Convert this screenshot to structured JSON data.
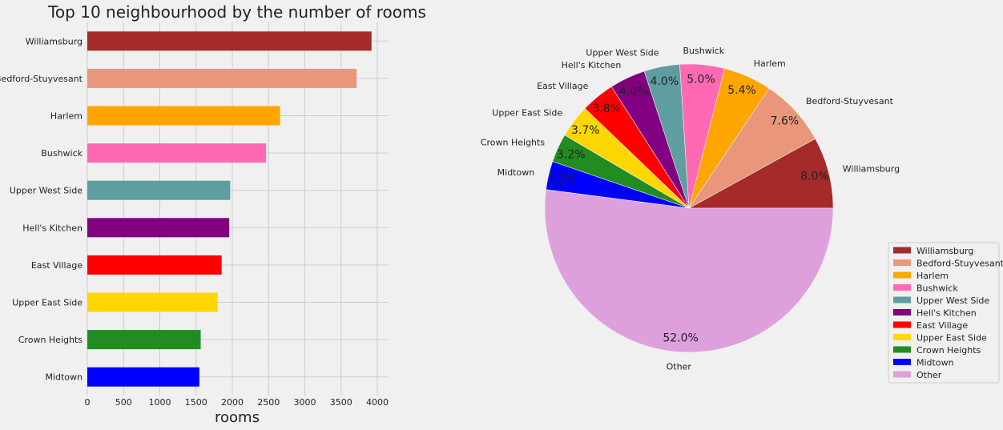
{
  "chart_data": [
    {
      "type": "bar",
      "orientation": "horizontal",
      "title": "Top 10 neighbourhood by the number of rooms",
      "xlabel": "rooms",
      "ylabel": "",
      "xlim": [
        0,
        4150
      ],
      "xticks": [
        0,
        500,
        1000,
        1500,
        2000,
        2500,
        3000,
        3500,
        4000
      ],
      "grid": true,
      "categories": [
        "Williamsburg",
        "Bedford-Stuyvesant",
        "Harlem",
        "Bushwick",
        "Upper West Side",
        "Hell's Kitchen",
        "East Village",
        "Upper East Side",
        "Crown Heights",
        "Midtown"
      ],
      "values": [
        3920,
        3714,
        2658,
        2465,
        1971,
        1958,
        1853,
        1798,
        1564,
        1545
      ],
      "colors": [
        "#a52a2a",
        "#e9967a",
        "#ffa500",
        "#ff69b4",
        "#5f9ea0",
        "#800080",
        "#ff0000",
        "#ffd700",
        "#228b22",
        "#0000ff"
      ]
    },
    {
      "type": "pie",
      "labels": [
        "Williamsburg",
        "Bedford-Stuyvesant",
        "Harlem",
        "Bushwick",
        "Upper West Side",
        "Hell's Kitchen",
        "East Village",
        "Upper East Side",
        "Crown Heights",
        "Midtown",
        "Other"
      ],
      "values": [
        8.0,
        7.6,
        5.4,
        5.0,
        4.0,
        4.0,
        3.8,
        3.7,
        3.2,
        3.2,
        52.0
      ],
      "pct_labels": [
        "8.0%",
        "7.6%",
        "5.4%",
        "5.0%",
        "4.0%",
        "4.0%",
        "3.8%",
        "3.7%",
        "3.2%",
        "3.2%",
        "52.0%"
      ],
      "colors": [
        "#a52a2a",
        "#e9967a",
        "#ffa500",
        "#ff69b4",
        "#5f9ea0",
        "#800080",
        "#ff0000",
        "#ffd700",
        "#228b22",
        "#0000ff",
        "#dda0dd"
      ],
      "start_angle_deg": 0,
      "direction": "counterclockwise",
      "legend_position": "lower-right"
    }
  ]
}
